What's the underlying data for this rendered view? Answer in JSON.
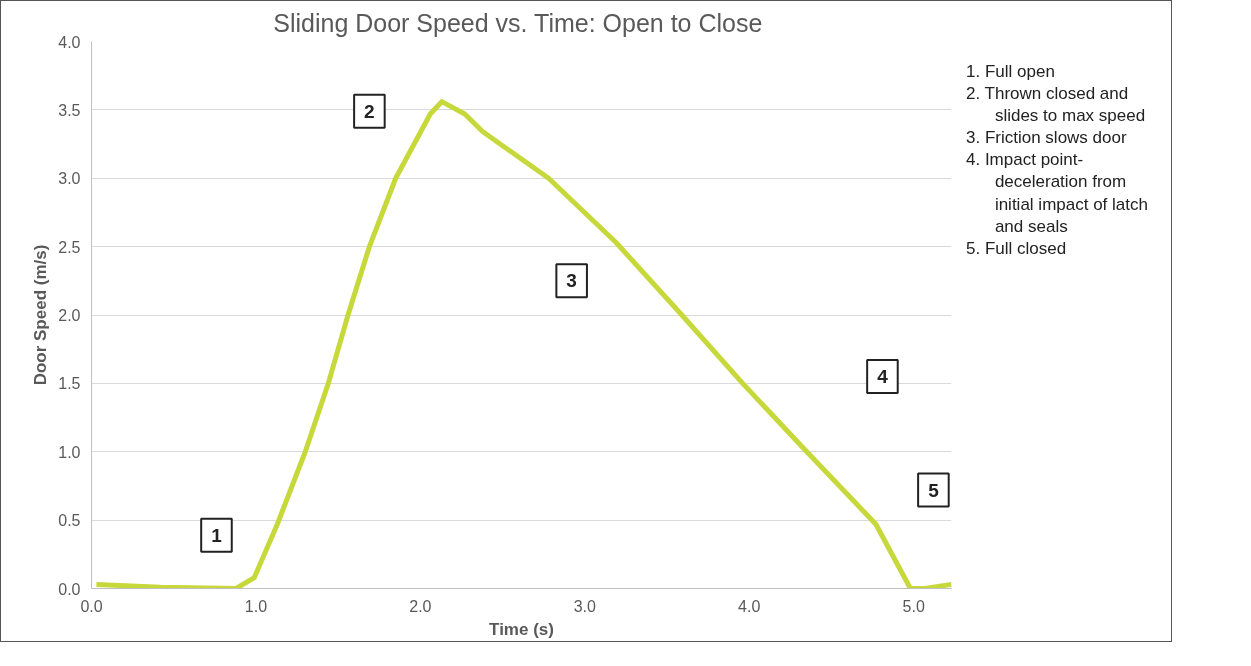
{
  "chart_data": {
    "type": "line",
    "title": "Sliding Door Speed vs. Time:  Open to Close",
    "xlabel": "Time (s)",
    "ylabel": "Door Speed (m/s)",
    "x": [
      0.03,
      0.42,
      0.88,
      0.99,
      1.13,
      1.3,
      1.44,
      1.56,
      1.69,
      1.85,
      2.06,
      2.13,
      2.27,
      2.38,
      2.78,
      3.19,
      3.59,
      3.96,
      4.35,
      4.77,
      4.98,
      5.07,
      5.23
    ],
    "series": [
      {
        "color": "#c6d83a",
        "values": [
          0.03,
          0.01,
          0.0,
          0.08,
          0.47,
          1.0,
          1.5,
          2.0,
          2.5,
          3.0,
          3.47,
          3.56,
          3.47,
          3.34,
          3.0,
          2.53,
          2.0,
          1.5,
          1.0,
          0.47,
          0.0,
          0.0,
          0.03
        ]
      }
    ],
    "xlim": [
      0,
      5.23
    ],
    "xticks": [
      {
        "value": 0,
        "label": "0.0"
      },
      {
        "value": 1,
        "label": "1.0"
      },
      {
        "value": 2,
        "label": "2.0"
      },
      {
        "value": 3,
        "label": "3.0"
      },
      {
        "value": 4,
        "label": "4.0"
      },
      {
        "value": 5,
        "label": "5.0"
      }
    ],
    "ylim": [
      0,
      4
    ],
    "yticks": [
      {
        "value": 0,
        "label": "0.0"
      },
      {
        "value": 0.5,
        "label": "0.5"
      },
      {
        "value": 1,
        "label": "1.0"
      },
      {
        "value": 1.5,
        "label": "1.5"
      },
      {
        "value": 2,
        "label": "2.0"
      },
      {
        "value": 2.5,
        "label": "2.5"
      },
      {
        "value": 3,
        "label": "3.0"
      },
      {
        "value": 3.5,
        "label": "3.5"
      },
      {
        "value": 4,
        "label": "4.0"
      }
    ],
    "grid": "y",
    "marker": "none",
    "line_style": "solid",
    "annotations": [
      {
        "text": "1",
        "x": 0.76,
        "y": 0.39
      },
      {
        "text": "2",
        "x": 1.69,
        "y": 3.49
      },
      {
        "text": "3",
        "x": 2.92,
        "y": 2.25
      },
      {
        "text": "4",
        "x": 4.81,
        "y": 1.55
      },
      {
        "text": "5",
        "x": 5.12,
        "y": 0.72
      },
      "1.  Full open",
      "2.  Thrown closed and slides to max speed",
      "3.  Friction slows door",
      "4.  Impact point-deceleration from initial impact of latch and seals",
      "5.  Full closed"
    ]
  }
}
